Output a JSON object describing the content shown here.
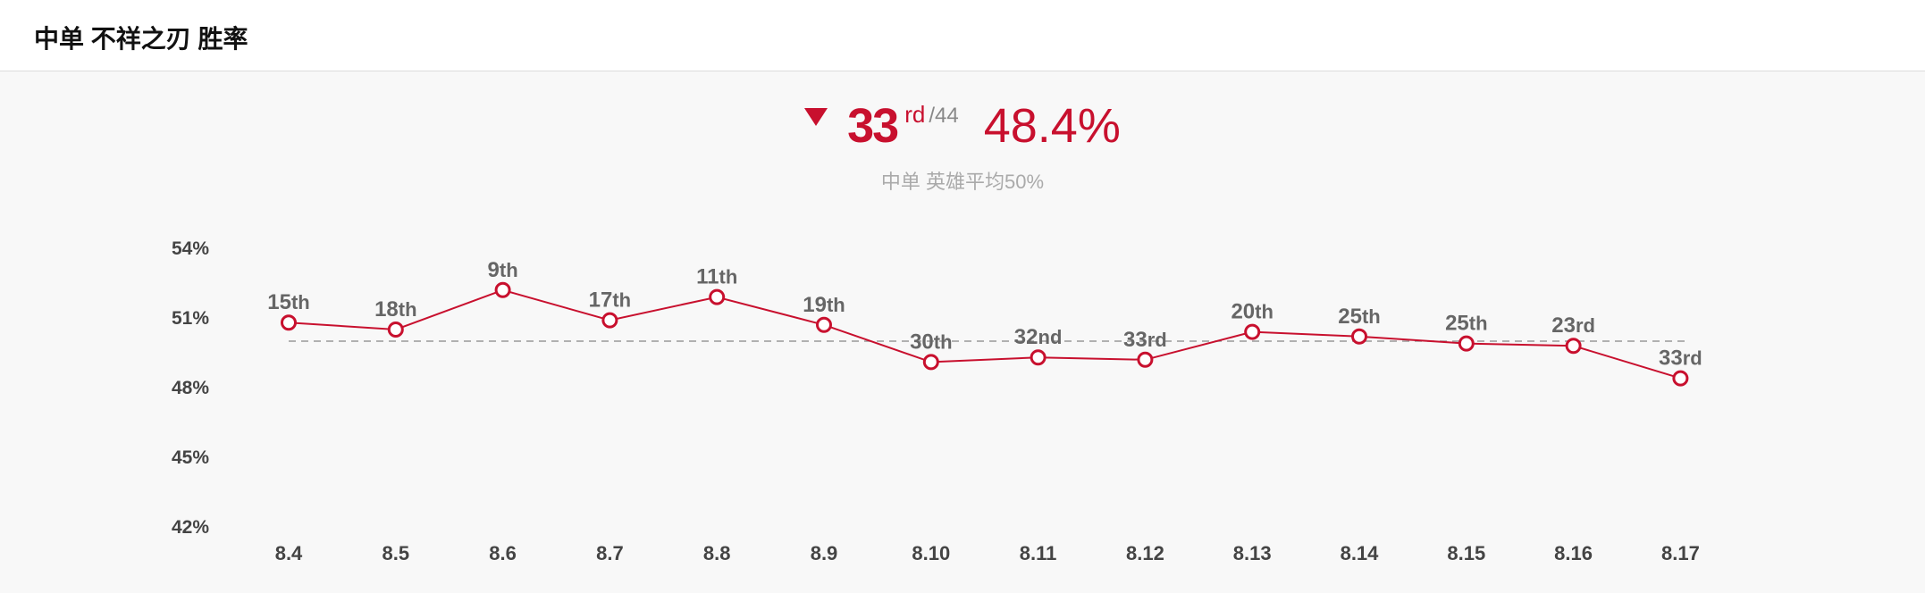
{
  "header": {
    "title": "中单 不祥之刃 胜率"
  },
  "summary": {
    "trend_icon": "down-triangle-icon",
    "rank": "33",
    "rank_suffix": "rd",
    "total": "/44",
    "win_rate": "48.4%",
    "average_note": "中单 英雄平均50%"
  },
  "colors": {
    "accent": "#c8102e",
    "average_line": "#999999",
    "tick_text": "#444444"
  },
  "chart_data": {
    "type": "line",
    "categories": [
      "8.4",
      "8.5",
      "8.6",
      "8.7",
      "8.8",
      "8.9",
      "8.10",
      "8.11",
      "8.12",
      "8.13",
      "8.14",
      "8.15",
      "8.16",
      "8.17"
    ],
    "series": [
      {
        "values": [
          50.8,
          50.5,
          52.2,
          50.9,
          51.9,
          50.7,
          49.1,
          49.3,
          49.2,
          50.4,
          50.2,
          49.9,
          49.8,
          48.4
        ],
        "point_labels": [
          {
            "num": "15",
            "suffix": "th"
          },
          {
            "num": "18",
            "suffix": "th"
          },
          {
            "num": "9",
            "suffix": "th"
          },
          {
            "num": "17",
            "suffix": "th"
          },
          {
            "num": "11",
            "suffix": "th"
          },
          {
            "num": "19",
            "suffix": "th"
          },
          {
            "num": "30",
            "suffix": "th"
          },
          {
            "num": "32",
            "suffix": "nd"
          },
          {
            "num": "33",
            "suffix": "rd"
          },
          {
            "num": "20",
            "suffix": "th"
          },
          {
            "num": "25",
            "suffix": "th"
          },
          {
            "num": "25",
            "suffix": "th"
          },
          {
            "num": "23",
            "suffix": "rd"
          },
          {
            "num": "33",
            "suffix": "rd"
          }
        ]
      }
    ],
    "average_line": 50,
    "ylim": [
      42,
      54
    ],
    "yticks": [
      {
        "value": 54,
        "label": "54%"
      },
      {
        "value": 51,
        "label": "51%"
      },
      {
        "value": 48,
        "label": "48%"
      },
      {
        "value": 45,
        "label": "45%"
      },
      {
        "value": 42,
        "label": "42%"
      }
    ],
    "grid": false
  }
}
